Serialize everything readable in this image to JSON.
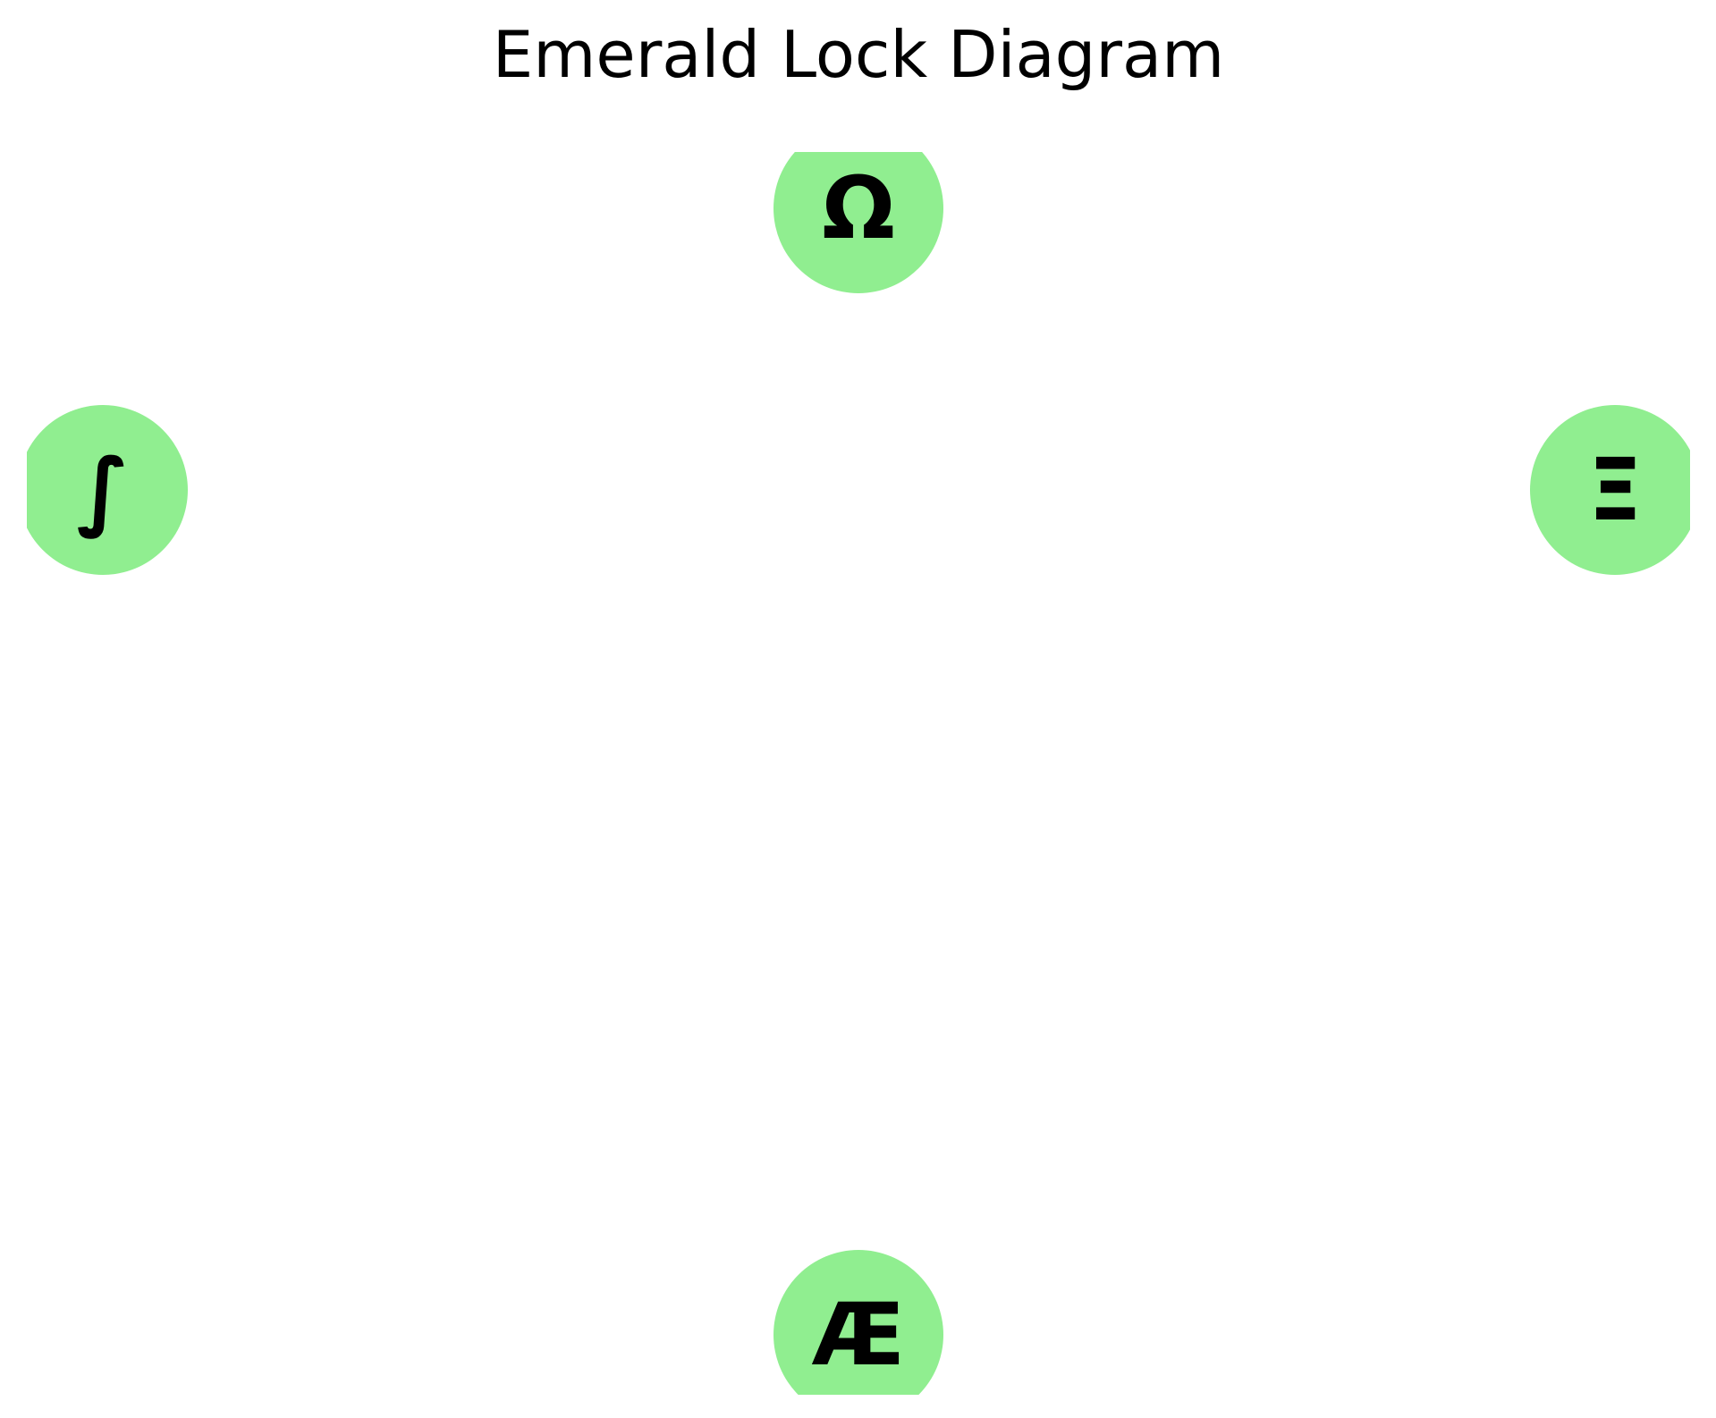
{
  "diagram": {
    "title": "Emerald Lock Diagram",
    "node_color": "#90ee90",
    "label_color": "#000000",
    "nodes": [
      {
        "id": "top",
        "label": "Ω"
      },
      {
        "id": "left",
        "label": "∫"
      },
      {
        "id": "right",
        "label": "Ξ"
      },
      {
        "id": "bottom",
        "label": "Æ"
      }
    ]
  }
}
